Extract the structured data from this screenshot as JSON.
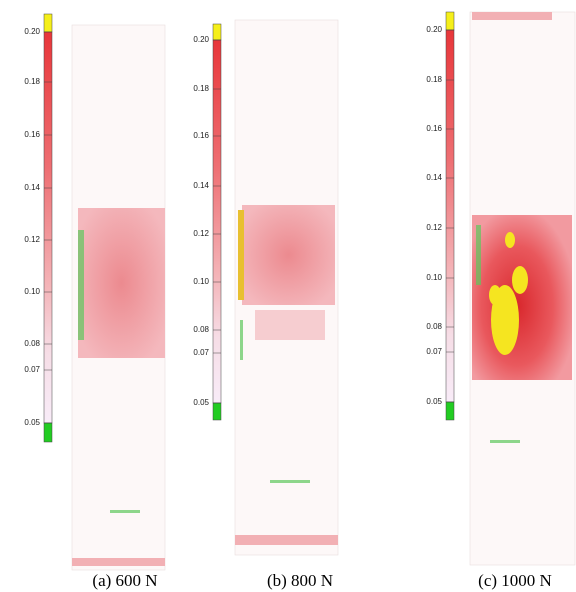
{
  "panels": [
    {
      "caption": "(a) 600 N",
      "scale_labels": [
        "0.20",
        "0.18",
        "0.16",
        "0.14",
        "0.12",
        "0.10",
        "0.08",
        "0.07",
        "0.05"
      ]
    },
    {
      "caption": "(b) 800 N",
      "scale_labels": [
        "0.20",
        "0.18",
        "0.16",
        "0.14",
        "0.12",
        "0.10",
        "0.08",
        "0.07",
        "0.05"
      ]
    },
    {
      "caption": "(c) 1000 N",
      "scale_labels": [
        "0.20",
        "0.18",
        "0.16",
        "0.14",
        "0.12",
        "0.10",
        "0.08",
        "0.07",
        "0.05"
      ]
    }
  ]
}
